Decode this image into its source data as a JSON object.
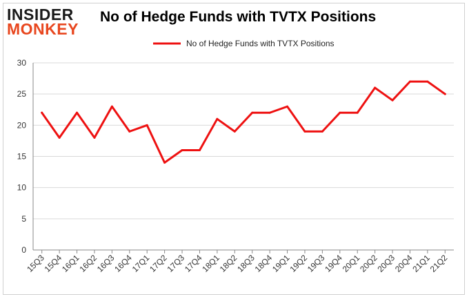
{
  "logo": {
    "line1": "INSIDER",
    "line2": "MONKEY"
  },
  "colors": {
    "series": "#ee1111",
    "grid": "#d9d9d9",
    "axis": "#888888",
    "logo_dark": "#1a1a1a",
    "logo_accent": "#e8471f"
  },
  "chart_data": {
    "type": "line",
    "title": "No of Hedge Funds with TVTX Positions",
    "xlabel": "",
    "ylabel": "",
    "ylim": [
      0,
      30
    ],
    "yticks": [
      0,
      5,
      10,
      15,
      20,
      25,
      30
    ],
    "grid": true,
    "legend_position": "top-center",
    "categories": [
      "15Q3",
      "15Q4",
      "16Q1",
      "16Q2",
      "16Q3",
      "16Q4",
      "17Q1",
      "17Q2",
      "17Q3",
      "17Q4",
      "18Q1",
      "18Q2",
      "18Q3",
      "18Q4",
      "19Q1",
      "19Q2",
      "19Q3",
      "19Q4",
      "20Q1",
      "20Q2",
      "20Q3",
      "20Q4",
      "21Q1",
      "21Q2"
    ],
    "series": [
      {
        "name": "No of Hedge Funds with TVTX  Positions",
        "values": [
          22,
          18,
          22,
          18,
          23,
          19,
          20,
          14,
          16,
          16,
          21,
          19,
          22,
          22,
          23,
          19,
          19,
          22,
          22,
          26,
          24,
          27,
          27,
          25
        ]
      }
    ]
  }
}
